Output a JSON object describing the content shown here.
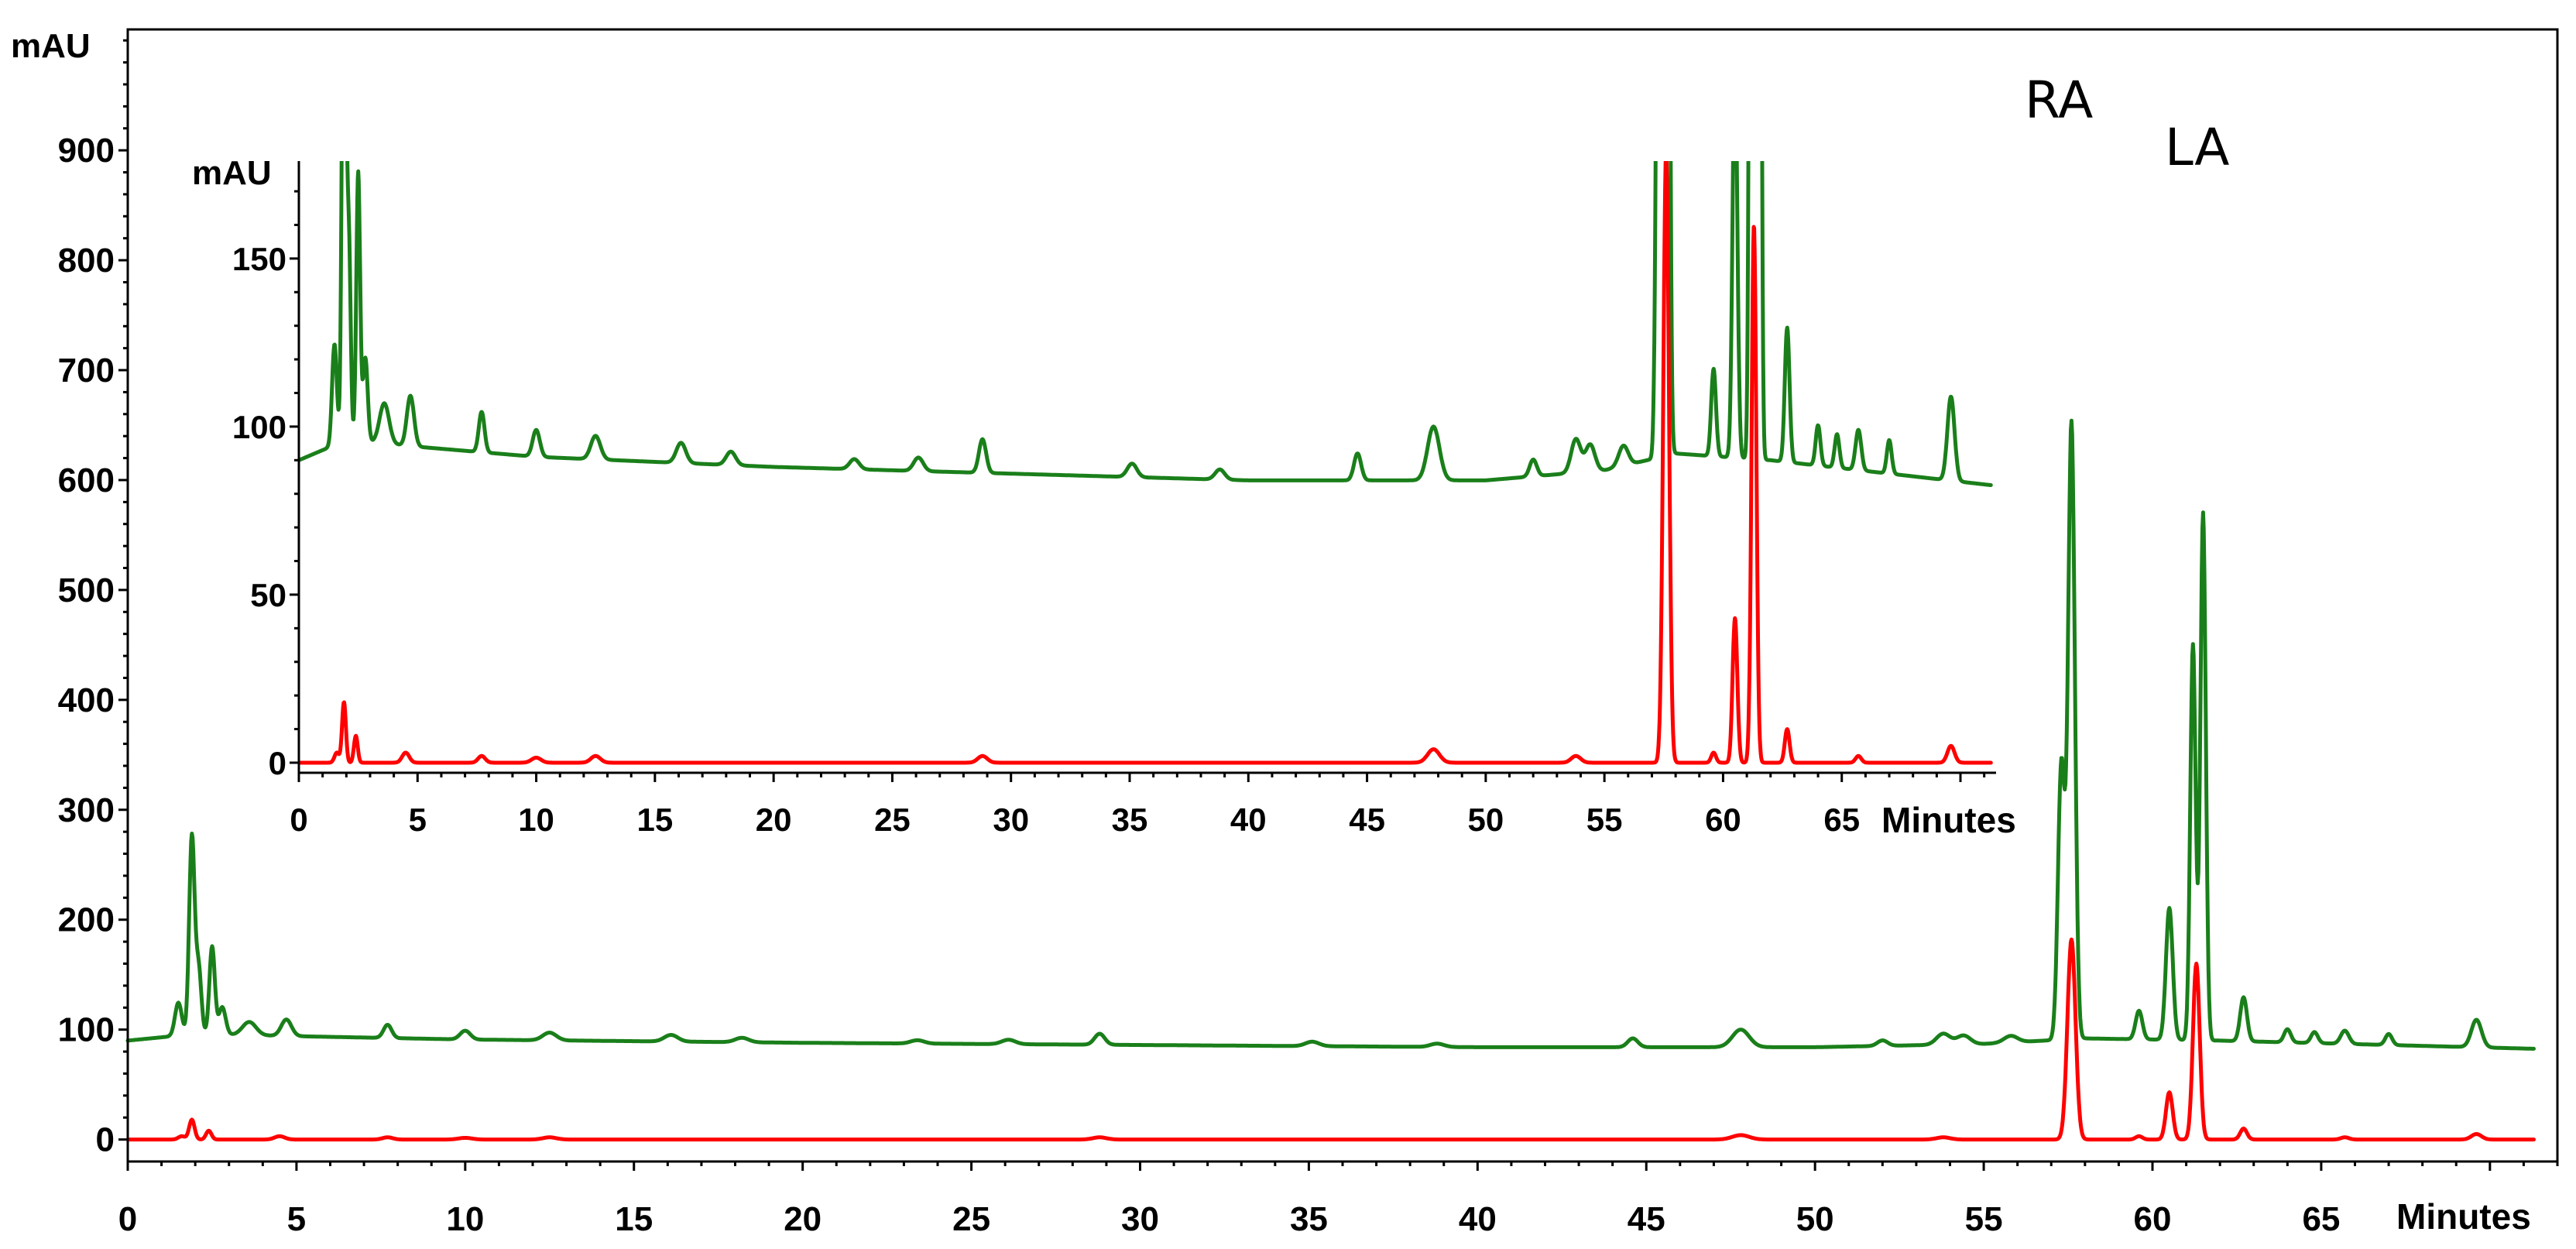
{
  "chart_data": [
    {
      "id": "main",
      "type": "line",
      "ylabel": "mAU",
      "xlabel": "Minutes",
      "xlim": [
        0,
        72
      ],
      "ylim": [
        -20,
        1010
      ],
      "x_ticks": [
        0,
        5,
        10,
        15,
        20,
        25,
        30,
        35,
        40,
        45,
        50,
        55,
        60,
        65
      ],
      "y_ticks": [
        0,
        100,
        200,
        300,
        400,
        500,
        600,
        700,
        800,
        900
      ],
      "annotations": [
        {
          "text": "RA",
          "x": 57.6,
          "y": 945
        },
        {
          "text": "LA",
          "x": 61.3,
          "y": 905
        }
      ],
      "series": [
        {
          "color": "#1a7f1a",
          "baseline": [
            [
              0,
              90
            ],
            [
              2,
              96
            ],
            [
              5,
              94
            ],
            [
              10,
              91
            ],
            [
              20,
              88
            ],
            [
              30,
              86
            ],
            [
              40,
              84
            ],
            [
              50,
              84
            ],
            [
              55,
              87
            ],
            [
              58,
              92
            ],
            [
              62,
              90
            ],
            [
              72,
              82
            ]
          ],
          "peaks": [
            [
              1.5,
              30,
              0.1
            ],
            [
              1.9,
              180,
              0.08
            ],
            [
              2.1,
              60,
              0.08
            ],
            [
              2.5,
              80,
              0.08
            ],
            [
              2.8,
              25,
              0.1
            ],
            [
              3.6,
              12,
              0.2
            ],
            [
              4.7,
              15,
              0.15
            ],
            [
              7.7,
              12,
              0.12
            ],
            [
              10,
              8,
              0.15
            ],
            [
              12.5,
              7,
              0.2
            ],
            [
              16.1,
              6,
              0.2
            ],
            [
              18.2,
              4,
              0.2
            ],
            [
              23.4,
              3,
              0.2
            ],
            [
              26.1,
              4,
              0.2
            ],
            [
              28.8,
              10,
              0.15
            ],
            [
              35.1,
              4,
              0.2
            ],
            [
              38.8,
              3,
              0.2
            ],
            [
              44.6,
              8,
              0.15
            ],
            [
              47.8,
              16,
              0.25
            ],
            [
              52,
              5,
              0.15
            ],
            [
              53.8,
              10,
              0.2
            ],
            [
              54.4,
              8,
              0.2
            ],
            [
              55.8,
              6,
              0.2
            ],
            [
              57.3,
              250,
              0.1
            ],
            [
              57.6,
              560,
              0.1
            ],
            [
              59.6,
              26,
              0.1
            ],
            [
              60.5,
              120,
              0.1
            ],
            [
              61.2,
              360,
              0.08
            ],
            [
              61.5,
              480,
              0.08
            ],
            [
              62.7,
              40,
              0.1
            ],
            [
              64,
              12,
              0.1
            ],
            [
              64.8,
              10,
              0.1
            ],
            [
              65.7,
              12,
              0.12
            ],
            [
              67,
              10,
              0.1
            ],
            [
              69.6,
              25,
              0.15
            ]
          ]
        },
        {
          "color": "#ff0000",
          "baseline": [
            [
              0,
              0
            ],
            [
              72,
              0
            ]
          ],
          "peaks": [
            [
              1.6,
              3,
              0.1
            ],
            [
              1.9,
              18,
              0.08
            ],
            [
              2.4,
              8,
              0.08
            ],
            [
              4.5,
              3,
              0.15
            ],
            [
              7.7,
              2,
              0.15
            ],
            [
              10,
              1.5,
              0.2
            ],
            [
              12.5,
              2,
              0.2
            ],
            [
              28.8,
              2,
              0.2
            ],
            [
              47.8,
              4,
              0.25
            ],
            [
              53.8,
              2,
              0.2
            ],
            [
              57.6,
              182,
              0.12
            ],
            [
              59.6,
              3,
              0.1
            ],
            [
              60.5,
              43,
              0.1
            ],
            [
              61.3,
              160,
              0.1
            ],
            [
              62.7,
              10,
              0.1
            ],
            [
              65.7,
              2,
              0.12
            ],
            [
              69.6,
              5,
              0.15
            ]
          ]
        }
      ]
    },
    {
      "id": "inset",
      "type": "line",
      "ylabel": "mAU",
      "xlabel": "Minutes",
      "xlim": [
        0,
        71.5
      ],
      "ylim": [
        -3,
        179
      ],
      "x_ticks": [
        0,
        5,
        10,
        15,
        20,
        25,
        30,
        35,
        40,
        45,
        50,
        55,
        60,
        65
      ],
      "y_ticks": [
        0,
        50,
        100,
        150
      ],
      "series": [
        {
          "color": "#1a7f1a",
          "baseline": [
            [
              0,
              90
            ],
            [
              2,
              96
            ],
            [
              5,
              94
            ],
            [
              10,
              91
            ],
            [
              20,
              88
            ],
            [
              30,
              86
            ],
            [
              40,
              84
            ],
            [
              50,
              84
            ],
            [
              55,
              87
            ],
            [
              58,
              92
            ],
            [
              62,
              90
            ],
            [
              72,
              82
            ]
          ],
          "peaks": [
            [
              1.5,
              30,
              0.1
            ],
            [
              1.9,
              180,
              0.08
            ],
            [
              2.1,
              60,
              0.08
            ],
            [
              2.5,
              80,
              0.08
            ],
            [
              2.8,
              25,
              0.1
            ],
            [
              3.6,
              12,
              0.2
            ],
            [
              4.7,
              15,
              0.15
            ],
            [
              7.7,
              12,
              0.12
            ],
            [
              10,
              8,
              0.15
            ],
            [
              12.5,
              7,
              0.2
            ],
            [
              16.1,
              6,
              0.2
            ],
            [
              18.2,
              4,
              0.2
            ],
            [
              23.4,
              3,
              0.2
            ],
            [
              26.1,
              4,
              0.2
            ],
            [
              28.8,
              10,
              0.15
            ],
            [
              35.1,
              4,
              0.2
            ],
            [
              38.8,
              3,
              0.2
            ],
            [
              44.6,
              8,
              0.15
            ],
            [
              47.8,
              16,
              0.25
            ],
            [
              52,
              5,
              0.15
            ],
            [
              53.8,
              10,
              0.2
            ],
            [
              54.4,
              8,
              0.2
            ],
            [
              55.8,
              6,
              0.2
            ],
            [
              57.3,
              250,
              0.1
            ],
            [
              57.6,
              560,
              0.1
            ],
            [
              59.6,
              26,
              0.1
            ],
            [
              60.5,
              120,
              0.1
            ],
            [
              61.2,
              360,
              0.08
            ],
            [
              61.5,
              480,
              0.08
            ],
            [
              62.7,
              40,
              0.1
            ],
            [
              64,
              12,
              0.1
            ],
            [
              64.8,
              10,
              0.1
            ],
            [
              65.7,
              12,
              0.12
            ],
            [
              67,
              10,
              0.1
            ],
            [
              69.6,
              25,
              0.15
            ]
          ]
        },
        {
          "color": "#ff0000",
          "baseline": [
            [
              0,
              0
            ],
            [
              72,
              0
            ]
          ],
          "peaks": [
            [
              1.6,
              3,
              0.1
            ],
            [
              1.9,
              18,
              0.08
            ],
            [
              2.4,
              8,
              0.08
            ],
            [
              4.5,
              3,
              0.15
            ],
            [
              7.7,
              2,
              0.15
            ],
            [
              10,
              1.5,
              0.2
            ],
            [
              12.5,
              2,
              0.2
            ],
            [
              28.8,
              2,
              0.2
            ],
            [
              47.8,
              4,
              0.25
            ],
            [
              53.8,
              2,
              0.2
            ],
            [
              57.6,
              182,
              0.12
            ],
            [
              59.6,
              3,
              0.1
            ],
            [
              60.5,
              43,
              0.1
            ],
            [
              61.3,
              160,
              0.1
            ],
            [
              62.7,
              10,
              0.1
            ],
            [
              65.7,
              2,
              0.12
            ],
            [
              69.6,
              5,
              0.15
            ]
          ]
        }
      ]
    }
  ]
}
